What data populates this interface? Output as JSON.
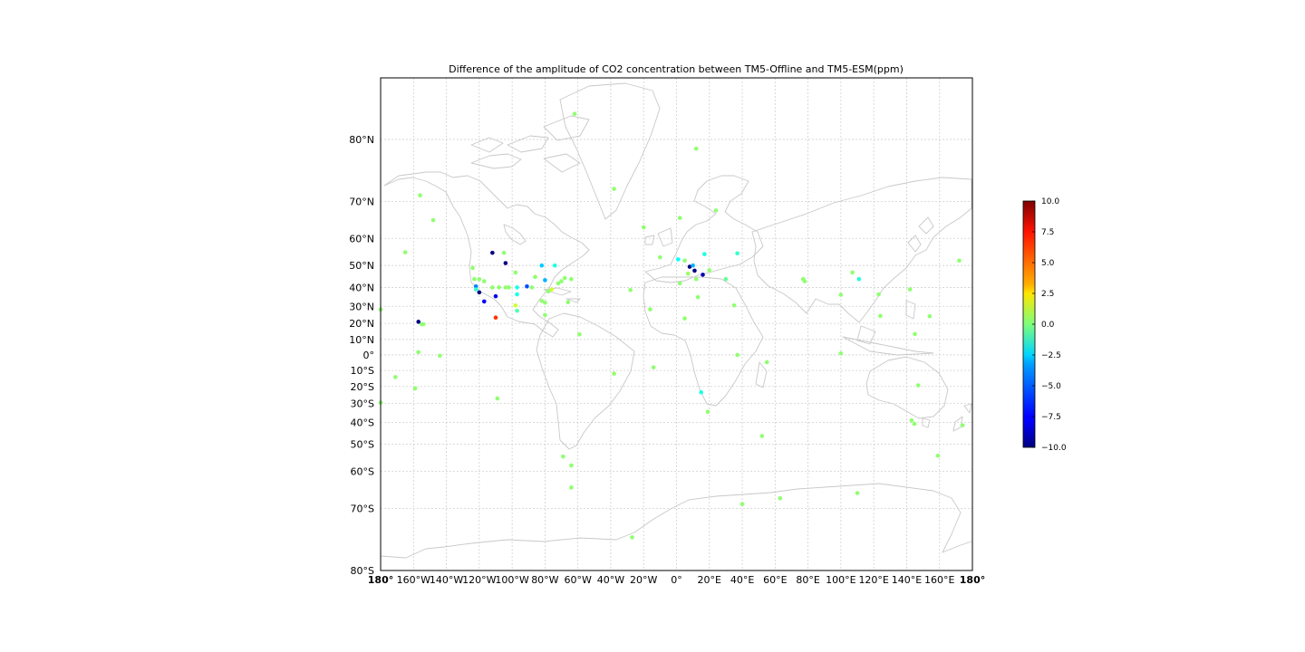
{
  "chart_data": {
    "type": "scatter",
    "title": "Difference of the amplitude of CO2 concentration between TM5-Offline and TM5-ESM(ppm)",
    "projection": "mercator",
    "lon_range": [
      -180,
      180
    ],
    "lat_range": [
      -80,
      85
    ],
    "grid": true,
    "legend": "right (colorbar)",
    "colormap": "jet",
    "x_ticks": [
      "180°",
      "160°W",
      "140°W",
      "120°W",
      "100°W",
      "80°W",
      "60°W",
      "40°W",
      "20°W",
      "0°",
      "20°E",
      "40°E",
      "60°E",
      "80°E",
      "100°E",
      "120°E",
      "140°E",
      "160°E",
      "180°"
    ],
    "y_ticks": [
      "80°S",
      "70°S",
      "60°S",
      "50°S",
      "40°S",
      "30°S",
      "20°S",
      "10°S",
      "0°",
      "10°N",
      "20°N",
      "30°N",
      "40°N",
      "50°N",
      "60°N",
      "70°N",
      "80°N"
    ],
    "colorbar": {
      "range": [
        -10,
        10
      ],
      "ticks": [
        "10.0",
        "7.5",
        "5.0",
        "2.5",
        "0.0",
        "−2.5",
        "−5.0",
        "−7.5",
        "−10.0"
      ]
    },
    "points": [
      {
        "lon": -62,
        "lat": 82.5,
        "value": 0.3
      },
      {
        "lon": 12,
        "lat": 78.9,
        "value": 0.3
      },
      {
        "lon": -38,
        "lat": 72.6,
        "value": 0.3
      },
      {
        "lon": -156,
        "lat": 71.3,
        "value": 0.3
      },
      {
        "lon": -148,
        "lat": 65.4,
        "value": 0.3
      },
      {
        "lon": 2,
        "lat": 66.0,
        "value": 0.3
      },
      {
        "lon": 24,
        "lat": 67.9,
        "value": 0.3
      },
      {
        "lon": -20,
        "lat": 63.4,
        "value": 0.3
      },
      {
        "lon": -165,
        "lat": 55.2,
        "value": 0.3
      },
      {
        "lon": -112,
        "lat": 55.0,
        "value": -10
      },
      {
        "lon": -105,
        "lat": 55.0,
        "value": 0.3
      },
      {
        "lon": -104,
        "lat": 51.0,
        "value": -10
      },
      {
        "lon": -82,
        "lat": 50.0,
        "value": -3.5
      },
      {
        "lon": -74,
        "lat": 50.0,
        "value": -2.0
      },
      {
        "lon": -124,
        "lat": 49.0,
        "value": 0.3
      },
      {
        "lon": -98,
        "lat": 47.0,
        "value": 0.3
      },
      {
        "lon": -10,
        "lat": 53.3,
        "value": 0.3
      },
      {
        "lon": 1,
        "lat": 52.5,
        "value": -2.5
      },
      {
        "lon": 5,
        "lat": 52.0,
        "value": 0.3
      },
      {
        "lon": 17,
        "lat": 54.5,
        "value": -2.0
      },
      {
        "lon": 37,
        "lat": 54.8,
        "value": -1.5
      },
      {
        "lon": 8,
        "lat": 49.5,
        "value": -10
      },
      {
        "lon": 11,
        "lat": 47.8,
        "value": -10
      },
      {
        "lon": 10,
        "lat": 50.0,
        "value": -4
      },
      {
        "lon": 16,
        "lat": 46.0,
        "value": -9
      },
      {
        "lon": 7,
        "lat": 46.5,
        "value": 0.5
      },
      {
        "lon": 20,
        "lat": 48.0,
        "value": 0.3
      },
      {
        "lon": 12,
        "lat": 44.0,
        "value": 0.3
      },
      {
        "lon": 2,
        "lat": 42.0,
        "value": 0.3
      },
      {
        "lon": 30,
        "lat": 44.0,
        "value": -0.5
      },
      {
        "lon": 77,
        "lat": 44.0,
        "value": 0.3
      },
      {
        "lon": 78,
        "lat": 43.0,
        "value": 0.3
      },
      {
        "lon": 107,
        "lat": 47.0,
        "value": 0.3
      },
      {
        "lon": 111,
        "lat": 44.0,
        "value": -1.8
      },
      {
        "lon": 172,
        "lat": 52.0,
        "value": 0.3
      },
      {
        "lon": -123,
        "lat": 44.0,
        "value": 0.3
      },
      {
        "lon": -120,
        "lat": 44.0,
        "value": 0.3
      },
      {
        "lon": -117,
        "lat": 43.0,
        "value": 0.3
      },
      {
        "lon": -122,
        "lat": 40.5,
        "value": -5
      },
      {
        "lon": -122,
        "lat": 39.0,
        "value": -1.5
      },
      {
        "lon": -120,
        "lat": 37.5,
        "value": -10
      },
      {
        "lon": -117,
        "lat": 32.7,
        "value": -7.5
      },
      {
        "lon": -110,
        "lat": 35.5,
        "value": -8
      },
      {
        "lon": -112,
        "lat": 40.0,
        "value": 0.3
      },
      {
        "lon": -108,
        "lat": 40.0,
        "value": 0.3
      },
      {
        "lon": -104,
        "lat": 40.0,
        "value": 0.3
      },
      {
        "lon": -102,
        "lat": 40.0,
        "value": 0.3
      },
      {
        "lon": -97,
        "lat": 40.0,
        "value": -2.0
      },
      {
        "lon": -91,
        "lat": 40.5,
        "value": -6
      },
      {
        "lon": -88,
        "lat": 40.0,
        "value": 0.3
      },
      {
        "lon": -97,
        "lat": 36.5,
        "value": -2.0
      },
      {
        "lon": -86,
        "lat": 45.0,
        "value": 0.3
      },
      {
        "lon": -80,
        "lat": 43.5,
        "value": -4
      },
      {
        "lon": -72,
        "lat": 42.0,
        "value": 0.3
      },
      {
        "lon": -70,
        "lat": 43.0,
        "value": 0.3
      },
      {
        "lon": -64,
        "lat": 44.0,
        "value": 0.3
      },
      {
        "lon": -68,
        "lat": 44.5,
        "value": 0.3
      },
      {
        "lon": -76,
        "lat": 39.0,
        "value": 1.5
      },
      {
        "lon": -78,
        "lat": 38.0,
        "value": 0.3
      },
      {
        "lon": -82,
        "lat": 33.0,
        "value": 0.3
      },
      {
        "lon": -80,
        "lat": 32.0,
        "value": 0.3
      },
      {
        "lon": -66,
        "lat": 32.3,
        "value": 0.3
      },
      {
        "lon": -98,
        "lat": 30.5,
        "value": 1.5
      },
      {
        "lon": -97,
        "lat": 27.5,
        "value": -1.0
      },
      {
        "lon": -80,
        "lat": 25.0,
        "value": 0.3
      },
      {
        "lon": -110,
        "lat": 23.5,
        "value": 6.5
      },
      {
        "lon": -180,
        "lat": 28.2,
        "value": 0.3
      },
      {
        "lon": -157,
        "lat": 21.0,
        "value": -10
      },
      {
        "lon": -155,
        "lat": 19.5,
        "value": 0.3
      },
      {
        "lon": -154,
        "lat": 19.5,
        "value": 0.3
      },
      {
        "lon": -157,
        "lat": 1.8,
        "value": 0.3
      },
      {
        "lon": -144,
        "lat": -0.5,
        "value": 0.3
      },
      {
        "lon": -171,
        "lat": -14.2,
        "value": 0.3
      },
      {
        "lon": -159,
        "lat": -21.2,
        "value": 0.3
      },
      {
        "lon": -180,
        "lat": -29.5,
        "value": 0.3
      },
      {
        "lon": -109,
        "lat": -27.1,
        "value": 0.3
      },
      {
        "lon": -59,
        "lat": 13.2,
        "value": 0.3
      },
      {
        "lon": -38,
        "lat": -12.0,
        "value": 0.3
      },
      {
        "lon": -28,
        "lat": 38.7,
        "value": 0.3
      },
      {
        "lon": -16,
        "lat": 28.3,
        "value": 0.3
      },
      {
        "lon": -14,
        "lat": -8.0,
        "value": 0.3
      },
      {
        "lon": 5,
        "lat": 23.0,
        "value": 0.3
      },
      {
        "lon": 13,
        "lat": 35.0,
        "value": 0.3
      },
      {
        "lon": 35,
        "lat": 30.5,
        "value": 0.3
      },
      {
        "lon": 37,
        "lat": 0.0,
        "value": 0.3
      },
      {
        "lon": 55,
        "lat": -4.7,
        "value": 0.3
      },
      {
        "lon": 15,
        "lat": -23.5,
        "value": -2.0
      },
      {
        "lon": 19,
        "lat": -34.5,
        "value": 0.3
      },
      {
        "lon": 52,
        "lat": -46.4,
        "value": 0.3
      },
      {
        "lon": 100,
        "lat": 36.3,
        "value": 0.3
      },
      {
        "lon": 123,
        "lat": 36.5,
        "value": 0.3
      },
      {
        "lon": 142,
        "lat": 39.0,
        "value": 0.3
      },
      {
        "lon": 124,
        "lat": 24.5,
        "value": 0.3
      },
      {
        "lon": 154,
        "lat": 24.3,
        "value": 0.3
      },
      {
        "lon": 145,
        "lat": 13.4,
        "value": 0.3
      },
      {
        "lon": 100,
        "lat": 1.0,
        "value": 0.3
      },
      {
        "lon": 147,
        "lat": -19.3,
        "value": 0.3
      },
      {
        "lon": 144.7,
        "lat": -40.7,
        "value": 0.3
      },
      {
        "lon": 143,
        "lat": -39.0,
        "value": 0.3
      },
      {
        "lon": 159,
        "lat": -54.5,
        "value": 0.3
      },
      {
        "lon": 174,
        "lat": -41.4,
        "value": 0.3
      },
      {
        "lon": -69,
        "lat": -54.8,
        "value": 0.3
      },
      {
        "lon": -64,
        "lat": -58.0,
        "value": 0.3
      },
      {
        "lon": -64,
        "lat": -64.8,
        "value": 0.3
      },
      {
        "lon": -27,
        "lat": -75.5,
        "value": 0.3
      },
      {
        "lon": 40,
        "lat": -69.0,
        "value": 0.3
      },
      {
        "lon": 63,
        "lat": -67.6,
        "value": 0.3
      },
      {
        "lon": 110,
        "lat": -66.3,
        "value": 0.3
      }
    ]
  }
}
